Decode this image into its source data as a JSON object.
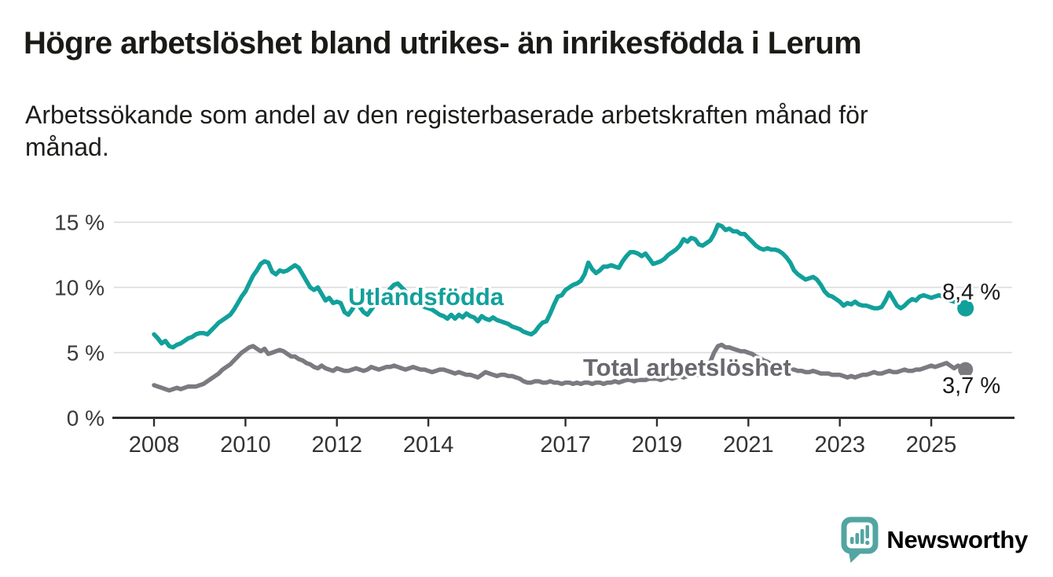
{
  "header": {
    "title": "Högre arbetslöshet bland utrikes- än inrikesfödda i Lerum",
    "subtitle_line1": "Arbetssökande som andel av den registerbaserade arbetskraften månad för",
    "subtitle_line2": "månad."
  },
  "footer": {
    "brand": "Newsworthy",
    "brand_text_color": "#43a3a0",
    "brand_icon_color": "#52a5a2"
  },
  "chart_data": {
    "type": "line",
    "title": "Högre arbetslöshet bland utrikes- än inrikesfödda i Lerum",
    "subtitle": "Arbetssökande som andel av den registerbaserade arbetskraften månad för månad.",
    "unit": "%",
    "frequency": "monthly",
    "grid": "horizontal",
    "legend_position": "inline-labels",
    "axis_color": "#2e2e2e",
    "grid_color": "#dcdcdc",
    "xlim": [
      2007.7,
      2026.3
    ],
    "ylim": [
      0,
      15.5
    ],
    "x_ticks": [
      {
        "label": "2008",
        "value": 2008
      },
      {
        "label": "2010",
        "value": 2010
      },
      {
        "label": "2012",
        "value": 2012
      },
      {
        "label": "2014",
        "value": 2014
      },
      {
        "label": "2017",
        "value": 2017
      },
      {
        "label": "2019",
        "value": 2019
      },
      {
        "label": "2021",
        "value": 2021
      },
      {
        "label": "2023",
        "value": 2023
      },
      {
        "label": "2025",
        "value": 2025
      }
    ],
    "y_ticks": [
      {
        "label": "0 %",
        "value": 0
      },
      {
        "label": "5 %",
        "value": 5
      },
      {
        "label": "10 %",
        "value": 10
      },
      {
        "label": "15 %",
        "value": 15
      }
    ],
    "series": [
      {
        "name": "Utlandsfödda",
        "color": "#12a09b",
        "label_color": "#12a09b",
        "end_label": "8,4 %",
        "end_value": 8.4,
        "start_year": 2008,
        "start_month": 1,
        "values": [
          6.4,
          6.1,
          5.7,
          5.9,
          5.5,
          5.4,
          5.6,
          5.7,
          5.9,
          6.1,
          6.2,
          6.4,
          6.5,
          6.5,
          6.4,
          6.7,
          7.0,
          7.3,
          7.5,
          7.7,
          7.9,
          8.3,
          8.8,
          9.3,
          9.7,
          10.3,
          10.9,
          11.3,
          11.8,
          12.0,
          11.9,
          11.2,
          11.0,
          11.3,
          11.2,
          11.3,
          11.5,
          11.7,
          11.5,
          11.0,
          10.5,
          10.0,
          9.8,
          10.0,
          9.5,
          9.0,
          9.2,
          8.8,
          8.9,
          8.8,
          8.1,
          7.9,
          8.3,
          8.8,
          8.5,
          8.1,
          7.9,
          8.3,
          8.7,
          8.8,
          9.1,
          9.5,
          9.9,
          10.2,
          10.3,
          10.0,
          9.7,
          9.3,
          9.0,
          8.8,
          8.7,
          8.5,
          8.4,
          8.3,
          8.1,
          7.9,
          7.8,
          7.6,
          7.9,
          7.6,
          7.9,
          7.7,
          8.0,
          7.8,
          7.7,
          7.4,
          7.8,
          7.6,
          7.5,
          7.7,
          7.5,
          7.4,
          7.3,
          7.2,
          7.0,
          6.9,
          6.8,
          6.6,
          6.5,
          6.4,
          6.6,
          7.0,
          7.3,
          7.4,
          8.0,
          8.7,
          9.3,
          9.4,
          9.8,
          10.0,
          10.2,
          10.3,
          10.5,
          11.0,
          11.9,
          11.4,
          11.1,
          11.3,
          11.6,
          11.6,
          11.7,
          11.6,
          11.5,
          12.0,
          12.4,
          12.7,
          12.7,
          12.6,
          12.4,
          12.6,
          12.2,
          11.8,
          11.9,
          12.0,
          12.2,
          12.5,
          12.7,
          12.9,
          13.2,
          13.7,
          13.5,
          13.8,
          13.7,
          13.3,
          13.2,
          13.4,
          13.6,
          14.1,
          14.8,
          14.7,
          14.4,
          14.5,
          14.3,
          14.3,
          14.1,
          14.1,
          13.8,
          13.5,
          13.2,
          13.0,
          12.9,
          13.0,
          12.9,
          12.9,
          12.8,
          12.6,
          12.3,
          11.9,
          11.3,
          11.0,
          10.8,
          10.6,
          10.7,
          10.8,
          10.6,
          10.2,
          9.7,
          9.4,
          9.3,
          9.1,
          8.9,
          8.6,
          8.8,
          8.7,
          8.9,
          8.7,
          8.6,
          8.6,
          8.5,
          8.4,
          8.4,
          8.5,
          9.0,
          9.6,
          9.1,
          8.6,
          8.4,
          8.6,
          8.9,
          9.1,
          9.0,
          9.3,
          9.4,
          9.3,
          9.2,
          9.3,
          9.4,
          9.3,
          9.1,
          9.0,
          8.9,
          8.9,
          8.6,
          8.4
        ]
      },
      {
        "name": "Total arbetslöshet",
        "color": "#7a7a80",
        "label_color": "#68686e",
        "end_label": "3,7 %",
        "end_value": 3.7,
        "start_year": 2008,
        "start_month": 1,
        "values": [
          2.5,
          2.4,
          2.3,
          2.2,
          2.1,
          2.2,
          2.3,
          2.2,
          2.3,
          2.4,
          2.4,
          2.4,
          2.5,
          2.6,
          2.8,
          3.0,
          3.2,
          3.4,
          3.7,
          3.9,
          4.1,
          4.4,
          4.7,
          5.0,
          5.2,
          5.4,
          5.5,
          5.3,
          5.1,
          5.3,
          4.9,
          5.0,
          5.1,
          5.2,
          5.1,
          4.9,
          4.7,
          4.7,
          4.5,
          4.4,
          4.2,
          4.1,
          3.9,
          3.8,
          4.0,
          3.8,
          3.7,
          3.6,
          3.8,
          3.7,
          3.6,
          3.6,
          3.7,
          3.8,
          3.7,
          3.6,
          3.7,
          3.9,
          3.8,
          3.7,
          3.8,
          3.9,
          3.9,
          4.0,
          3.9,
          3.8,
          3.7,
          3.8,
          3.9,
          3.8,
          3.7,
          3.7,
          3.6,
          3.5,
          3.6,
          3.7,
          3.7,
          3.6,
          3.5,
          3.4,
          3.5,
          3.4,
          3.3,
          3.3,
          3.2,
          3.1,
          3.3,
          3.5,
          3.4,
          3.3,
          3.2,
          3.3,
          3.3,
          3.2,
          3.2,
          3.1,
          3.0,
          2.8,
          2.7,
          2.7,
          2.8,
          2.8,
          2.7,
          2.7,
          2.8,
          2.7,
          2.7,
          2.6,
          2.7,
          2.7,
          2.6,
          2.7,
          2.6,
          2.7,
          2.7,
          2.6,
          2.7,
          2.7,
          2.6,
          2.7,
          2.7,
          2.8,
          2.7,
          2.8,
          2.9,
          2.9,
          2.8,
          2.9,
          2.9,
          2.9,
          3.0,
          3.0,
          3.0,
          2.9,
          3.0,
          3.1,
          3.0,
          3.1,
          3.2,
          3.1,
          3.2,
          3.2,
          3.3,
          3.3,
          3.4,
          3.6,
          4.3,
          5.0,
          5.5,
          5.6,
          5.4,
          5.4,
          5.3,
          5.2,
          5.1,
          5.1,
          5.0,
          4.9,
          4.7,
          4.6,
          4.4,
          4.3,
          4.1,
          4.0,
          3.9,
          3.8,
          3.8,
          3.7,
          3.7,
          3.6,
          3.6,
          3.5,
          3.5,
          3.6,
          3.5,
          3.4,
          3.4,
          3.4,
          3.3,
          3.3,
          3.3,
          3.2,
          3.1,
          3.2,
          3.1,
          3.2,
          3.3,
          3.3,
          3.4,
          3.5,
          3.4,
          3.4,
          3.5,
          3.6,
          3.5,
          3.5,
          3.6,
          3.7,
          3.6,
          3.6,
          3.7,
          3.7,
          3.8,
          3.9,
          4.0,
          3.9,
          4.0,
          4.1,
          4.2,
          4.0,
          3.8,
          4.0,
          3.9,
          3.7
        ]
      }
    ]
  }
}
